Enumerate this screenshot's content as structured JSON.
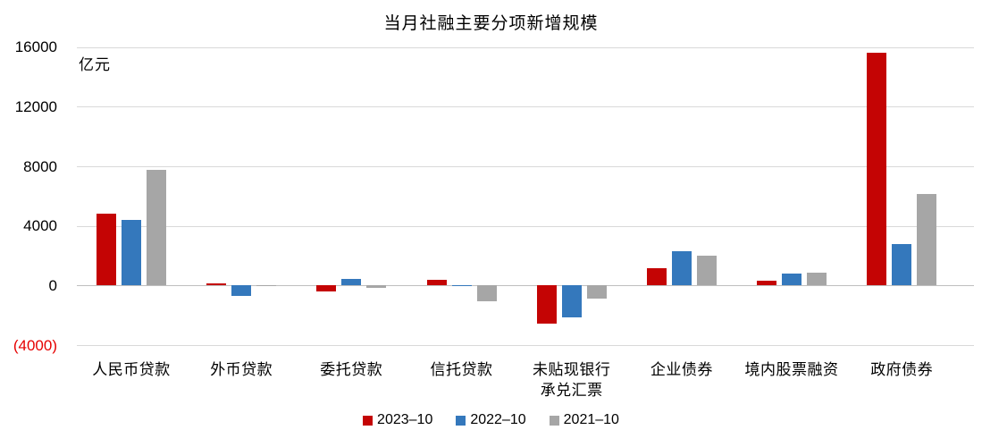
{
  "title": "当月社融主要分项新增规模",
  "unit_label": "亿元",
  "colors": {
    "series_red": "#c40404",
    "series_blue": "#3478bc",
    "series_gray": "#a6a6a6",
    "gridline": "#d9d9d9",
    "zero_line": "#bfbfbf",
    "negative_tick_label": "#e60000",
    "text": "#000000",
    "background": "#ffffff"
  },
  "y_axis": {
    "ticks": [
      {
        "label": "16000",
        "value": 16000,
        "negative": false
      },
      {
        "label": "12000",
        "value": 12000,
        "negative": false
      },
      {
        "label": "8000",
        "value": 8000,
        "negative": false
      },
      {
        "label": "4000",
        "value": 4000,
        "negative": false
      },
      {
        "label": "0",
        "value": 0,
        "negative": false
      },
      {
        "label": "(4000)",
        "value": -4000,
        "negative": true
      }
    ]
  },
  "chart_data": {
    "type": "bar",
    "title": "当月社融主要分项新增规模",
    "xlabel": "",
    "ylabel": "亿元",
    "ylim": [
      -4000,
      16000
    ],
    "grid": "horizontal",
    "legend_position": "bottom",
    "categories": [
      "人民币贷款",
      "外币贷款",
      "委托贷款",
      "信托贷款",
      "未贴现银行\n承兑汇票",
      "企业债券",
      "境内股票融资",
      "政府债券"
    ],
    "series": [
      {
        "name": "2023–10",
        "color": "#c40404",
        "values": [
          4837,
          150,
          -429,
          393,
          -2536,
          1144,
          321,
          15600
        ]
      },
      {
        "name": "2022–10",
        "color": "#3478bc",
        "values": [
          4431,
          -724,
          470,
          -61,
          -2157,
          2325,
          788,
          2791
        ]
      },
      {
        "name": "2021–10",
        "color": "#a6a6a6",
        "values": [
          7752,
          -34,
          -173,
          -1061,
          -886,
          2030,
          846,
          6167
        ]
      }
    ]
  }
}
